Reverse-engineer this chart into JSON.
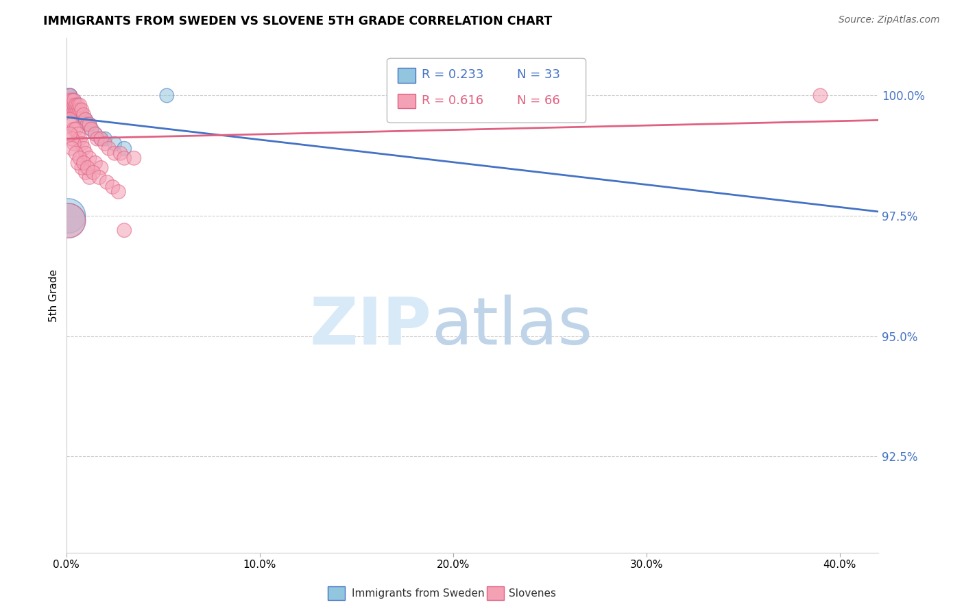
{
  "title": "IMMIGRANTS FROM SWEDEN VS SLOVENE 5TH GRADE CORRELATION CHART",
  "source": "Source: ZipAtlas.com",
  "ylabel_label": "5th Grade",
  "ytick_labels": [
    "92.5%",
    "95.0%",
    "97.5%",
    "100.0%"
  ],
  "ytick_values": [
    0.925,
    0.95,
    0.975,
    1.0
  ],
  "xtick_labels": [
    "0.0%",
    "10.0%",
    "20.0%",
    "30.0%",
    "40.0%"
  ],
  "xtick_values": [
    0.0,
    0.1,
    0.2,
    0.3,
    0.4
  ],
  "xlim": [
    0.0,
    0.42
  ],
  "ylim": [
    0.905,
    1.012
  ],
  "legend_r1": "R = 0.233",
  "legend_n1": "N = 33",
  "legend_r2": "R = 0.616",
  "legend_n2": "N = 66",
  "color_sweden": "#92c5de",
  "color_slovene": "#f4a0b5",
  "line_color_sweden": "#4472c4",
  "line_color_slovene": "#e06080",
  "sweden_x": [
    0.001,
    0.001,
    0.001,
    0.002,
    0.002,
    0.002,
    0.002,
    0.003,
    0.003,
    0.003,
    0.003,
    0.004,
    0.004,
    0.004,
    0.005,
    0.005,
    0.006,
    0.006,
    0.007,
    0.008,
    0.009,
    0.01,
    0.011,
    0.012,
    0.013,
    0.015,
    0.018,
    0.02,
    0.025,
    0.03,
    0.001,
    0.001,
    0.052
  ],
  "sweden_y": [
    0.999,
    0.999,
    1.0,
    0.999,
    0.999,
    1.0,
    1.0,
    0.999,
    0.999,
    0.998,
    0.998,
    0.998,
    0.999,
    0.998,
    0.997,
    0.997,
    0.997,
    0.997,
    0.996,
    0.996,
    0.995,
    0.995,
    0.994,
    0.994,
    0.993,
    0.992,
    0.991,
    0.991,
    0.99,
    0.989,
    0.975,
    0.974,
    1.0
  ],
  "sweden_sizes": [
    1,
    1,
    1,
    1,
    1,
    1,
    1,
    1,
    1,
    1,
    1,
    1,
    1,
    1,
    1,
    1,
    1,
    1,
    1,
    1,
    1,
    1,
    1,
    1,
    1,
    1,
    1,
    1,
    1,
    1,
    6,
    6,
    1
  ],
  "slovene_x": [
    0.001,
    0.001,
    0.001,
    0.002,
    0.002,
    0.002,
    0.002,
    0.003,
    0.003,
    0.003,
    0.004,
    0.004,
    0.004,
    0.005,
    0.005,
    0.006,
    0.006,
    0.007,
    0.007,
    0.008,
    0.009,
    0.01,
    0.011,
    0.012,
    0.013,
    0.015,
    0.016,
    0.018,
    0.02,
    0.022,
    0.025,
    0.028,
    0.03,
    0.035,
    0.002,
    0.003,
    0.004,
    0.005,
    0.006,
    0.007,
    0.008,
    0.009,
    0.01,
    0.012,
    0.015,
    0.018,
    0.01,
    0.012,
    0.008,
    0.006,
    0.004,
    0.003,
    0.002,
    0.003,
    0.005,
    0.007,
    0.009,
    0.011,
    0.014,
    0.017,
    0.021,
    0.024,
    0.027,
    0.39,
    0.001,
    0.03
  ],
  "slovene_y": [
    0.997,
    0.998,
    0.999,
    0.997,
    0.998,
    0.999,
    1.0,
    0.997,
    0.998,
    0.999,
    0.997,
    0.998,
    0.999,
    0.997,
    0.998,
    0.997,
    0.998,
    0.997,
    0.998,
    0.997,
    0.996,
    0.995,
    0.994,
    0.994,
    0.993,
    0.992,
    0.991,
    0.991,
    0.99,
    0.989,
    0.988,
    0.988,
    0.987,
    0.987,
    0.995,
    0.994,
    0.993,
    0.993,
    0.992,
    0.991,
    0.99,
    0.989,
    0.988,
    0.987,
    0.986,
    0.985,
    0.984,
    0.983,
    0.985,
    0.986,
    0.99,
    0.991,
    0.992,
    0.989,
    0.988,
    0.987,
    0.986,
    0.985,
    0.984,
    0.983,
    0.982,
    0.981,
    0.98,
    1.0,
    0.974,
    0.972
  ],
  "slovene_sizes": [
    1,
    1,
    1,
    1,
    1,
    1,
    1,
    1,
    1,
    1,
    1,
    1,
    1,
    1,
    1,
    1,
    1,
    1,
    1,
    1,
    1,
    1,
    1,
    1,
    1,
    1,
    1,
    1,
    1,
    1,
    1,
    1,
    1,
    1,
    1,
    1,
    1,
    1,
    1,
    1,
    1,
    1,
    1,
    1,
    1,
    1,
    1,
    1,
    1,
    1,
    1,
    1,
    1,
    1,
    1,
    1,
    1,
    1,
    1,
    1,
    1,
    1,
    1,
    1,
    6,
    1
  ]
}
